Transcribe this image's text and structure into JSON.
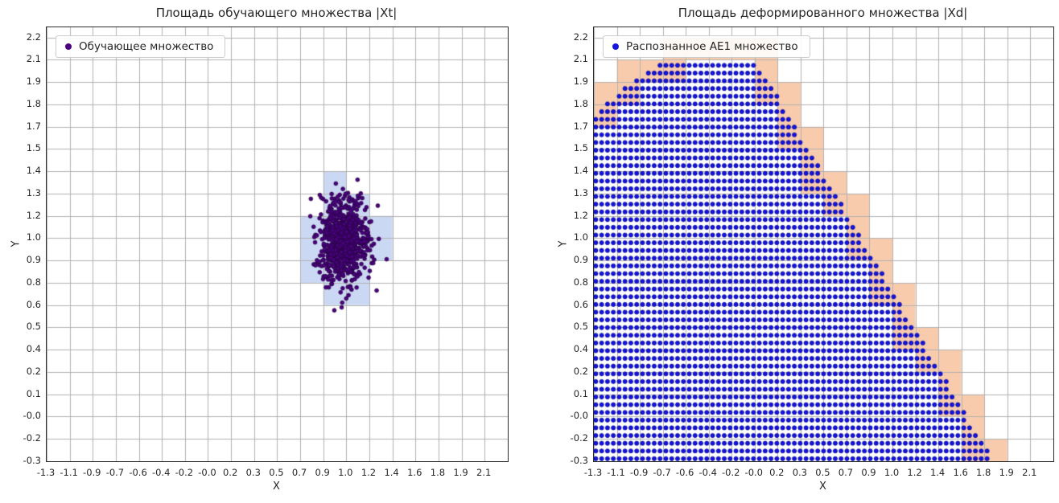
{
  "page": {
    "background": "#FFFFFF",
    "text_color": "#262626"
  },
  "chart_data": [
    {
      "type": "scatter",
      "title": "Площадь обучающего множества |Xt|",
      "xlabel": "X",
      "ylabel": "Y",
      "legend": {
        "label": "Обучающее множество",
        "marker_color": "#4B0082",
        "position": "upper left"
      },
      "grid": true,
      "grid_color": "#B0B0B0",
      "xlim": [
        -1.3,
        2.28
      ],
      "ylim": [
        -0.3,
        2.26
      ],
      "x_tick_range": [
        -1.3,
        2.1
      ],
      "y_tick_range": [
        -0.3,
        2.2
      ],
      "x_tick_labels": [
        "-1.3",
        "-1.1",
        "-0.9",
        "-0.7",
        "-0.6",
        "-0.4",
        "-0.2",
        "-0.0",
        "0.2",
        "0.3",
        "0.5",
        "0.7",
        "0.9",
        "1.0",
        "1.2",
        "1.4",
        "1.6",
        "1.8",
        "1.9",
        "2.1"
      ],
      "y_tick_labels": [
        "-0.3",
        "-0.2",
        "-0.0",
        "0.1",
        "0.2",
        "0.4",
        "0.5",
        "0.6",
        "0.8",
        "0.9",
        "1.0",
        "1.2",
        "1.3",
        "1.4",
        "1.5",
        "1.7",
        "1.8",
        "1.9",
        "2.1",
        "2.2"
      ],
      "cluster": {
        "center": [
          1.0,
          1.0
        ],
        "std": [
          0.1,
          0.125
        ],
        "n": 750,
        "seed": 42,
        "color": "#4B0082",
        "edge_color": "#26003F",
        "radius_px": 2.4
      },
      "highlight_cells": {
        "color": "#6A8EE059",
        "rects": [
          [
            0.8474,
            1.2789,
            1.0263,
            1.4105
          ],
          [
            0.8474,
            1.1474,
            1.2053,
            1.2789
          ],
          [
            0.6684,
            1.0158,
            1.3842,
            1.1474
          ],
          [
            0.6684,
            0.8842,
            1.3842,
            1.0158
          ],
          [
            0.6684,
            0.7526,
            1.2053,
            0.8842
          ],
          [
            0.8474,
            0.6211,
            1.2053,
            0.7526
          ]
        ]
      }
    },
    {
      "type": "scatter",
      "title": "Площадь деформированного множества |Xd|",
      "xlabel": "X",
      "ylabel": "Y",
      "legend": {
        "label": "Распознанное AE1 множество",
        "marker_color": "#1414E0",
        "position": "upper left"
      },
      "grid": true,
      "grid_color": "#B0B0B0",
      "xlim": [
        -1.3,
        2.28
      ],
      "ylim": [
        -0.3,
        2.26
      ],
      "x_tick_range": [
        -1.3,
        2.1
      ],
      "y_tick_range": [
        -0.3,
        2.2
      ],
      "x_tick_labels": [
        "-1.3",
        "-1.1",
        "-0.9",
        "-0.7",
        "-0.6",
        "-0.4",
        "-0.2",
        "-0.0",
        "0.2",
        "0.3",
        "0.5",
        "0.7",
        "0.9",
        "1.0",
        "1.2",
        "1.4",
        "1.6",
        "1.8",
        "1.9",
        "2.1"
      ],
      "y_tick_labels": [
        "-0.3",
        "-0.2",
        "-0.0",
        "0.1",
        "0.2",
        "0.4",
        "0.5",
        "0.6",
        "0.8",
        "0.9",
        "1.0",
        "1.2",
        "1.3",
        "1.4",
        "1.5",
        "1.7",
        "1.8",
        "1.9",
        "2.1",
        "2.2"
      ],
      "lattice": {
        "spacing": 0.0455,
        "x_start": -1.285,
        "y_start": -0.285,
        "x_end": 1.83,
        "color": "#1414E0",
        "edge_color": "#000090",
        "radius_px": 2.6,
        "boundary": {
          "plateau_y": 2.08,
          "plateau_x": [
            -0.5,
            -0.05
          ],
          "left_curve_coef": 0.35,
          "left_curve_halfwidth": 0.8,
          "right_slope": -1.276
        }
      },
      "boundary_cells_color": "#ED7D3166"
    }
  ]
}
